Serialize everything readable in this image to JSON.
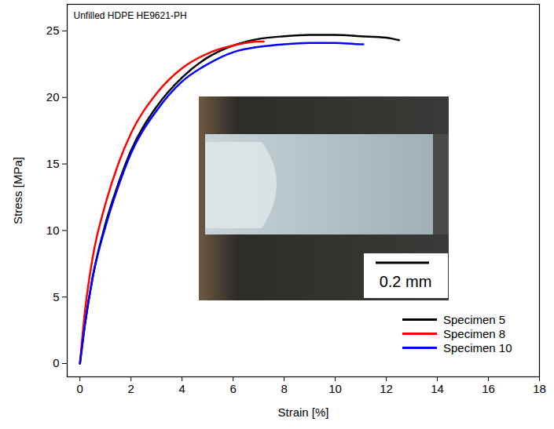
{
  "chart_data": {
    "type": "line",
    "title": "Unfilled HDPE HE9621-PH",
    "x_label": "Strain [%]",
    "y_label": "Stress [MPa]",
    "xlim": [
      -0.5,
      18
    ],
    "ylim": [
      -1,
      27
    ],
    "xticks": [
      0,
      2,
      4,
      6,
      8,
      10,
      12,
      14,
      16,
      18
    ],
    "yticks": [
      0,
      5,
      10,
      15,
      20,
      25
    ],
    "grid": false,
    "legend": "bottom-right",
    "inset_label": "0.2 mm",
    "series": [
      {
        "name": "Specimen 5",
        "color": "#000000",
        "x": [
          0,
          0.2,
          0.5,
          1,
          1.5,
          2,
          3,
          4,
          5,
          6,
          7,
          8,
          9,
          10,
          11,
          12,
          12.5
        ],
        "values": [
          0,
          3,
          6.5,
          10.5,
          13.5,
          16,
          19.3,
          21.5,
          23,
          23.9,
          24.4,
          24.6,
          24.7,
          24.7,
          24.6,
          24.5,
          24.3
        ]
      },
      {
        "name": "Specimen 8",
        "color": "#ff0000",
        "x": [
          0,
          0.2,
          0.5,
          1,
          1.5,
          2,
          3,
          4,
          5,
          6,
          7,
          7.2
        ],
        "values": [
          0,
          4,
          8,
          12,
          15,
          17.3,
          20.3,
          22.2,
          23.3,
          23.9,
          24.2,
          24.2
        ]
      },
      {
        "name": "Specimen 10",
        "color": "#0000ff",
        "x": [
          0,
          0.2,
          0.5,
          1,
          1.5,
          2,
          3,
          4,
          5,
          6,
          7,
          8,
          9,
          10,
          11,
          11.1
        ],
        "values": [
          0,
          3,
          6.5,
          10.3,
          13.3,
          15.8,
          19,
          21.2,
          22.5,
          23.4,
          23.8,
          24,
          24.1,
          24.1,
          24,
          24
        ]
      }
    ]
  }
}
